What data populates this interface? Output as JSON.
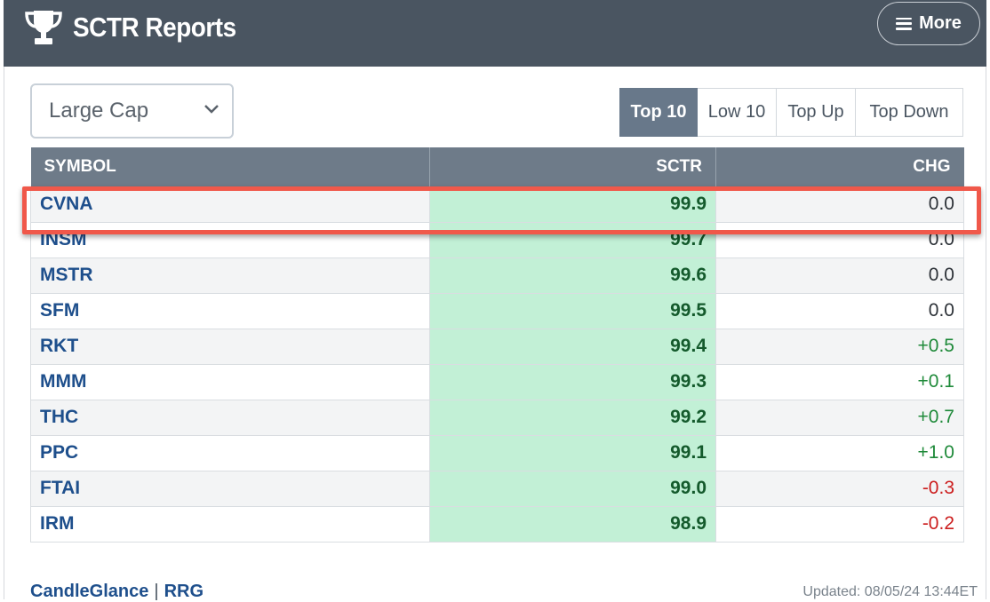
{
  "header": {
    "title": "SCTR Reports",
    "trophy_icon": "trophy-icon",
    "more_label": "More",
    "menu_icon": "hamburger-menu-icon",
    "background_color": "#4a5561"
  },
  "filter": {
    "selected": "Large Cap",
    "chevron_icon": "chevron-down-icon"
  },
  "tabs": [
    {
      "label": "Top 10",
      "active": true
    },
    {
      "label": "Low 10",
      "active": false
    },
    {
      "label": "Top Up",
      "active": false
    },
    {
      "label": "Top Down",
      "active": false
    }
  ],
  "table": {
    "columns": [
      "SYMBOL",
      "SCTR",
      "CHG"
    ],
    "rows": [
      {
        "symbol": "CVNA",
        "sctr": "99.9",
        "chg": "0.0",
        "trend": "flat"
      },
      {
        "symbol": "INSM",
        "sctr": "99.7",
        "chg": "0.0",
        "trend": "flat"
      },
      {
        "symbol": "MSTR",
        "sctr": "99.6",
        "chg": "0.0",
        "trend": "flat"
      },
      {
        "symbol": "SFM",
        "sctr": "99.5",
        "chg": "0.0",
        "trend": "flat"
      },
      {
        "symbol": "RKT",
        "sctr": "99.4",
        "chg": "+0.5",
        "trend": "pos"
      },
      {
        "symbol": "MMM",
        "sctr": "99.3",
        "chg": "+0.1",
        "trend": "pos"
      },
      {
        "symbol": "THC",
        "sctr": "99.2",
        "chg": "+0.7",
        "trend": "pos"
      },
      {
        "symbol": "PPC",
        "sctr": "99.1",
        "chg": "+1.0",
        "trend": "pos"
      },
      {
        "symbol": "FTAI",
        "sctr": "99.0",
        "chg": "-0.3",
        "trend": "neg"
      },
      {
        "symbol": "IRM",
        "sctr": "98.9",
        "chg": "-0.2",
        "trend": "neg"
      }
    ]
  },
  "colors": {
    "sctr_cell": "#c2f0d6",
    "positive": "#1f8a3a",
    "negative": "#cc1e1e",
    "highlight_box": "#f0584a",
    "link": "#1e4f8c"
  },
  "footer": {
    "link1": "CandleGlance",
    "separator": "|",
    "link2": "RRG",
    "updated": "Updated: 08/05/24 13:44ET"
  }
}
